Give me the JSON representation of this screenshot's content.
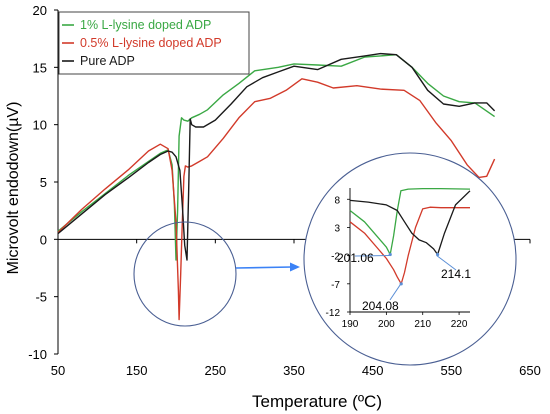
{
  "chart_data": {
    "type": "line",
    "xlabel": "Temperature (ºC)",
    "ylabel": "Microvolt endodown(µV)",
    "xlim": [
      50,
      650
    ],
    "ylim": [
      -10,
      20
    ],
    "x_ticks": [
      50,
      150,
      250,
      350,
      450,
      550,
      650
    ],
    "y_ticks": [
      -10,
      -5,
      0,
      5,
      10,
      15,
      20
    ],
    "grid": false,
    "legend_position": "top-left",
    "colors": {
      "series_green": "#3aa844",
      "series_red": "#d23a2a",
      "series_black": "#1a1a1a",
      "circle": "#4a5f93",
      "arrow": "#3b82f6",
      "annotation_arrow": "#5b8fd6"
    },
    "series": [
      {
        "name": "1% L-lysine doped ADP",
        "x": [
          50,
          80,
          110,
          140,
          165,
          180,
          190,
          195,
          198,
          200,
          202,
          204,
          207,
          210,
          215,
          220,
          230,
          240,
          260,
          280,
          300,
          330,
          350,
          380,
          410,
          440,
          460,
          480,
          500,
          520,
          540,
          560,
          580,
          605
        ],
        "y": [
          0.7,
          2.4,
          4.0,
          5.6,
          6.8,
          7.5,
          7.8,
          6.5,
          3.0,
          -1.8,
          2.5,
          9.0,
          10.6,
          10.4,
          10.3,
          10.6,
          10.9,
          11.3,
          12.6,
          13.6,
          14.7,
          15.0,
          15.3,
          15.2,
          15.1,
          15.9,
          16.0,
          16.1,
          15.0,
          13.6,
          12.5,
          12.0,
          11.9,
          10.7
        ]
      },
      {
        "name": "0.5% L-lysine doped ADP",
        "x": [
          50,
          80,
          110,
          140,
          165,
          180,
          190,
          195,
          200,
          203,
          204,
          206,
          208,
          210,
          212,
          215,
          220,
          230,
          240,
          260,
          280,
          300,
          320,
          340,
          360,
          380,
          400,
          430,
          460,
          490,
          510,
          530,
          550,
          570,
          585,
          595,
          605
        ],
        "y": [
          0.6,
          2.6,
          4.4,
          6.1,
          7.7,
          8.3,
          7.9,
          6.0,
          1.5,
          -4.5,
          -7.0,
          -3.0,
          1.5,
          5.5,
          6.4,
          6.3,
          6.4,
          6.8,
          7.2,
          8.8,
          10.6,
          12.0,
          12.3,
          13.0,
          14.0,
          13.7,
          13.2,
          13.4,
          13.1,
          13.0,
          12.1,
          10.2,
          8.6,
          6.5,
          5.4,
          5.5,
          7.0
        ]
      },
      {
        "name": "Pure ADP",
        "x": [
          50,
          80,
          110,
          140,
          165,
          180,
          190,
          195,
          200,
          205,
          208,
          211,
          214,
          216,
          218,
          220,
          225,
          235,
          250,
          270,
          290,
          310,
          330,
          350,
          380,
          410,
          440,
          460,
          480,
          500,
          520,
          540,
          560,
          580,
          595,
          605
        ],
        "y": [
          0.5,
          2.2,
          3.9,
          5.4,
          6.7,
          7.4,
          7.7,
          7.6,
          7.2,
          6.0,
          3.0,
          -0.5,
          -1.8,
          4.0,
          10.5,
          10.0,
          9.8,
          9.8,
          10.4,
          11.8,
          13.3,
          14.1,
          14.6,
          15.1,
          14.8,
          15.7,
          16.0,
          16.2,
          16.1,
          15.0,
          13.0,
          11.8,
          11.6,
          11.9,
          11.9,
          11.2
        ]
      }
    ],
    "inset": {
      "x_ticks": [
        190,
        200,
        210,
        220
      ],
      "y_ticks": [
        8,
        3,
        -2,
        -7,
        -12
      ],
      "xlim": [
        190,
        223
      ],
      "ylim": [
        -12,
        10
      ],
      "series": [
        {
          "name": "1% L-lysine doped ADP",
          "x": [
            190,
            194,
            198,
            200,
            201.06,
            202,
            203,
            204,
            206,
            210,
            215,
            223
          ],
          "y": [
            6.0,
            4.0,
            1.0,
            -0.5,
            -1.8,
            1.5,
            6.0,
            9.5,
            9.8,
            9.9,
            9.9,
            9.8
          ]
        },
        {
          "name": "0.5% L-lysine doped ADP",
          "x": [
            190,
            194,
            198,
            200,
            202,
            203,
            204.08,
            205,
            206,
            208,
            210,
            212,
            215,
            223
          ],
          "y": [
            4.0,
            2.0,
            -1.0,
            -2.5,
            -4.5,
            -5.8,
            -7.0,
            -5.0,
            -2.0,
            3.0,
            6.3,
            6.6,
            6.5,
            6.5
          ]
        },
        {
          "name": "Pure ADP",
          "x": [
            190,
            195,
            200,
            203,
            205,
            207,
            209,
            211,
            213,
            214.1,
            216,
            219,
            223
          ],
          "y": [
            7.8,
            7.5,
            7.0,
            6.0,
            4.0,
            2.0,
            0.8,
            0.3,
            -0.8,
            -1.8,
            2.0,
            7.0,
            9.5
          ]
        }
      ],
      "annotations": [
        {
          "text": "201.06",
          "x": 201.06,
          "y": -1.8
        },
        {
          "text": "204.08",
          "x": 204.08,
          "y": -7.0
        },
        {
          "text": "214.1",
          "x": 214.1,
          "y": -1.8
        }
      ]
    }
  }
}
